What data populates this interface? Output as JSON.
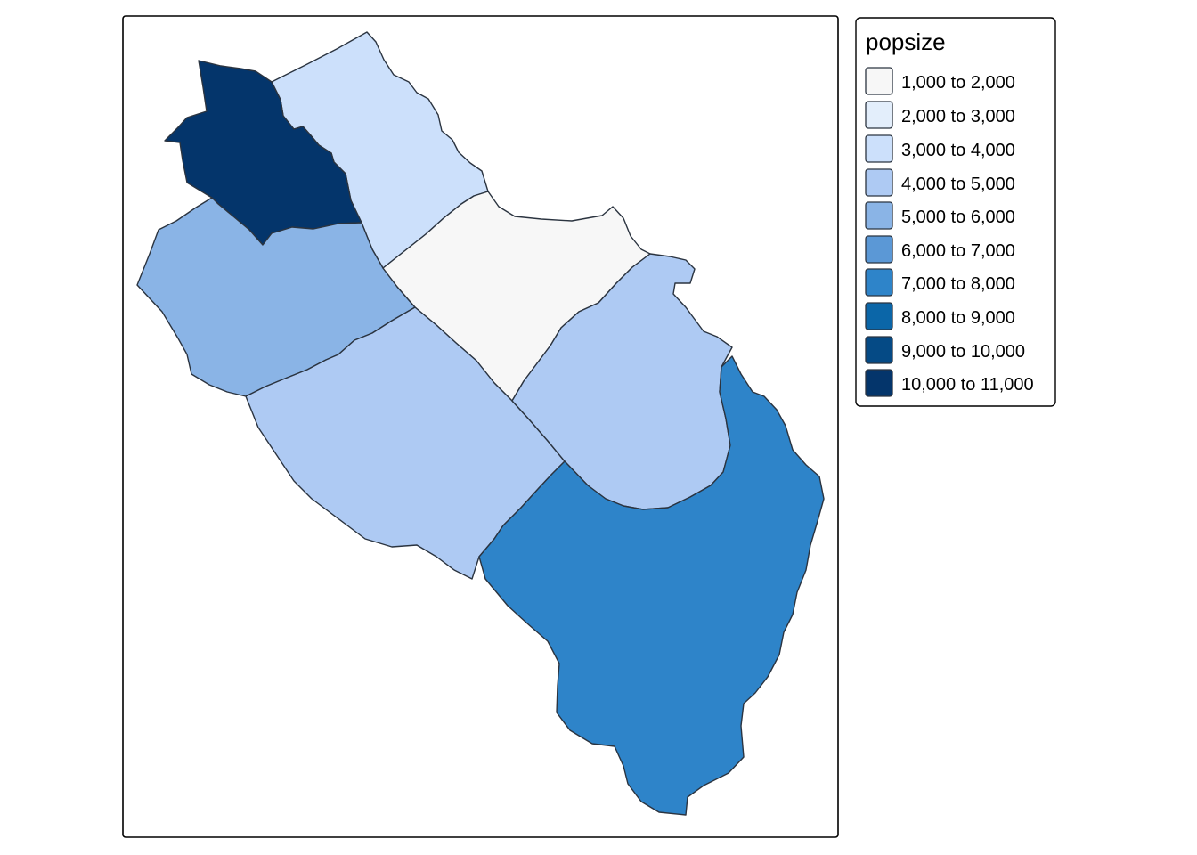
{
  "legend": {
    "title": "popsize",
    "classes": [
      {
        "label": "1,000 to 2,000",
        "color": "#f7f7f7"
      },
      {
        "label": "2,000 to 3,000",
        "color": "#e3eefb"
      },
      {
        "label": "3,000 to 4,000",
        "color": "#cce0fb"
      },
      {
        "label": "4,000 to 5,000",
        "color": "#aecaf3"
      },
      {
        "label": "5,000 to 6,000",
        "color": "#8ab4e6"
      },
      {
        "label": "6,000 to 7,000",
        "color": "#5b98d6"
      },
      {
        "label": "7,000 to 8,000",
        "color": "#2e84c9"
      },
      {
        "label": "8,000 to 9,000",
        "color": "#0b66a8"
      },
      {
        "label": "9,000 to 10,000",
        "color": "#054a85"
      },
      {
        "label": "10,000 to 11,000",
        "color": "#04356b"
      }
    ]
  },
  "regions": [
    {
      "id": "northwest",
      "class_index": 9
    },
    {
      "id": "north",
      "class_index": 2
    },
    {
      "id": "west",
      "class_index": 4
    },
    {
      "id": "center",
      "class_index": 0
    },
    {
      "id": "southwest",
      "class_index": 3
    },
    {
      "id": "east",
      "class_index": 3
    },
    {
      "id": "southeast",
      "class_index": 6
    }
  ]
}
